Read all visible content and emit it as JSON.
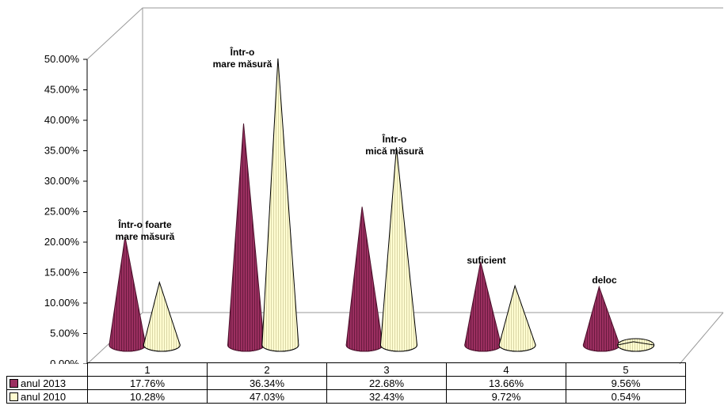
{
  "chart_data": {
    "type": "bar",
    "shape": "3d-cone",
    "categories": [
      "1",
      "2",
      "3",
      "4",
      "5"
    ],
    "category_labels": [
      "Într-o foarte mare măsură",
      "Într-o mare măsură",
      "Într-o mică măsură",
      "suficient",
      "deloc"
    ],
    "series": [
      {
        "name": "anul 2013",
        "color": "#9b2f60",
        "values": [
          17.76,
          36.34,
          22.68,
          13.66,
          9.56
        ],
        "display": [
          "17.76%",
          "36.34%",
          "22.68%",
          "13.66%",
          "9.56%"
        ]
      },
      {
        "name": "anul 2010",
        "color": "#fffcd0",
        "values": [
          10.28,
          47.03,
          32.43,
          9.72,
          0.54
        ],
        "display": [
          "10.28%",
          "47.03%",
          "32.43%",
          "9.72%",
          "0.54%"
        ]
      }
    ],
    "ylim": [
      0,
      50
    ],
    "yticks": [
      "0.00%",
      "5.00%",
      "10.00%",
      "15.00%",
      "20.00%",
      "25.00%",
      "30.00%",
      "35.00%",
      "40.00%",
      "45.00%",
      "50.00%"
    ],
    "grid": false,
    "legend": "data-table"
  }
}
